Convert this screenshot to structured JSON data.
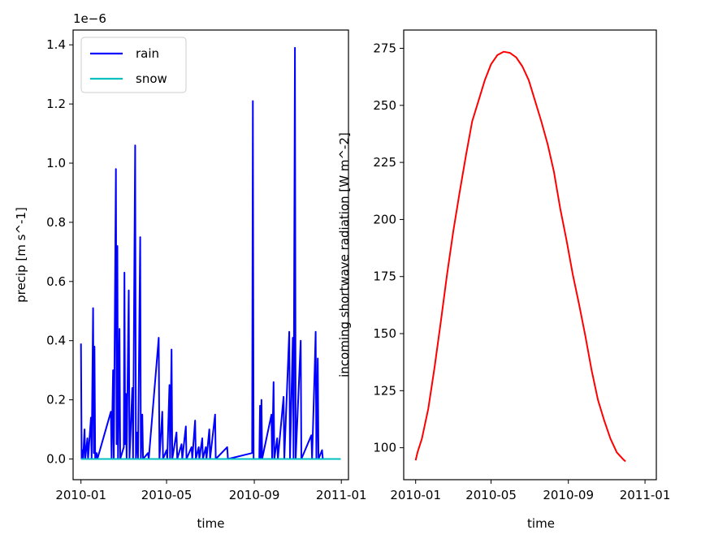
{
  "chart_data": [
    {
      "type": "line",
      "xlabel": "time",
      "ylabel": "precip [m s^-1]",
      "offset_text": "1e−6",
      "x_ticks": [
        "2010-01",
        "2010-05",
        "2010-09",
        "2011-01"
      ],
      "y_ticks": [
        "0.0",
        "0.2",
        "0.4",
        "0.6",
        "0.8",
        "1.0",
        "1.2",
        "1.4"
      ],
      "xlim": [
        "2009-12-21",
        "2011-01-11"
      ],
      "ylim": [
        -0.07,
        1.45
      ],
      "y_scale": 1e-06,
      "legend": {
        "placement": "upper-left"
      },
      "series": [
        {
          "name": "rain",
          "color": "#0000ff",
          "points": [
            [
              "2010-01-01",
              0.39
            ],
            [
              "2010-01-02",
              0.0
            ],
            [
              "2010-01-03",
              0.03
            ],
            [
              "2010-01-04",
              0.0
            ],
            [
              "2010-01-06",
              0.1
            ],
            [
              "2010-01-07",
              0.0
            ],
            [
              "2010-01-10",
              0.07
            ],
            [
              "2010-01-11",
              0.0
            ],
            [
              "2010-01-15",
              0.14
            ],
            [
              "2010-01-16",
              0.0
            ],
            [
              "2010-01-18",
              0.51
            ],
            [
              "2010-01-19",
              0.02
            ],
            [
              "2010-01-20",
              0.38
            ],
            [
              "2010-01-21",
              0.0
            ],
            [
              "2010-01-23",
              0.02
            ],
            [
              "2010-01-24",
              0.0
            ],
            [
              "2010-02-12",
              0.16
            ],
            [
              "2010-02-13",
              0.0
            ],
            [
              "2010-02-15",
              0.3
            ],
            [
              "2010-02-16",
              0.0
            ],
            [
              "2010-02-19",
              0.98
            ],
            [
              "2010-02-20",
              0.05
            ],
            [
              "2010-02-21",
              0.72
            ],
            [
              "2010-02-22",
              0.0
            ],
            [
              "2010-02-24",
              0.44
            ],
            [
              "2010-02-25",
              0.0
            ],
            [
              "2010-03-02",
              0.04
            ],
            [
              "2010-03-03",
              0.63
            ],
            [
              "2010-03-04",
              0.05
            ],
            [
              "2010-03-05",
              0.22
            ],
            [
              "2010-03-06",
              0.0
            ],
            [
              "2010-03-09",
              0.57
            ],
            [
              "2010-03-10",
              0.0
            ],
            [
              "2010-03-14",
              0.24
            ],
            [
              "2010-03-15",
              0.0
            ],
            [
              "2010-03-18",
              1.06
            ],
            [
              "2010-03-19",
              0.0
            ],
            [
              "2010-03-21",
              0.09
            ],
            [
              "2010-03-22",
              0.0
            ],
            [
              "2010-03-25",
              0.75
            ],
            [
              "2010-03-26",
              0.0
            ],
            [
              "2010-03-28",
              0.15
            ],
            [
              "2010-03-29",
              0.0
            ],
            [
              "2010-04-05",
              0.02
            ],
            [
              "2010-04-06",
              0.0
            ],
            [
              "2010-04-20",
              0.41
            ],
            [
              "2010-04-21",
              0.0
            ],
            [
              "2010-04-25",
              0.16
            ],
            [
              "2010-04-26",
              0.0
            ],
            [
              "2010-05-01",
              0.03
            ],
            [
              "2010-05-02",
              0.0
            ],
            [
              "2010-05-05",
              0.25
            ],
            [
              "2010-05-06",
              0.0
            ],
            [
              "2010-05-08",
              0.37
            ],
            [
              "2010-05-09",
              0.0
            ],
            [
              "2010-05-15",
              0.09
            ],
            [
              "2010-05-16",
              0.0
            ],
            [
              "2010-05-22",
              0.05
            ],
            [
              "2010-05-23",
              0.0
            ],
            [
              "2010-05-28",
              0.11
            ],
            [
              "2010-05-29",
              0.0
            ],
            [
              "2010-06-05",
              0.04
            ],
            [
              "2010-06-06",
              0.0
            ],
            [
              "2010-06-10",
              0.13
            ],
            [
              "2010-06-11",
              0.0
            ],
            [
              "2010-06-15",
              0.04
            ],
            [
              "2010-06-16",
              0.0
            ],
            [
              "2010-06-20",
              0.07
            ],
            [
              "2010-06-21",
              0.0
            ],
            [
              "2010-06-25",
              0.04
            ],
            [
              "2010-06-26",
              0.0
            ],
            [
              "2010-06-30",
              0.1
            ],
            [
              "2010-07-01",
              0.0
            ],
            [
              "2010-07-08",
              0.15
            ],
            [
              "2010-07-09",
              0.0
            ],
            [
              "2010-07-25",
              0.04
            ],
            [
              "2010-07-26",
              0.0
            ],
            [
              "2010-08-29",
              0.02
            ],
            [
              "2010-08-30",
              1.21
            ],
            [
              "2010-08-31",
              0.0
            ],
            [
              "2010-09-08",
              0.0
            ],
            [
              "2010-09-09",
              0.18
            ],
            [
              "2010-09-10",
              0.0
            ],
            [
              "2010-09-11",
              0.2
            ],
            [
              "2010-09-12",
              0.0
            ],
            [
              "2010-09-25",
              0.15
            ],
            [
              "2010-09-26",
              0.0
            ],
            [
              "2010-09-28",
              0.26
            ],
            [
              "2010-09-29",
              0.0
            ],
            [
              "2010-10-03",
              0.07
            ],
            [
              "2010-10-04",
              0.0
            ],
            [
              "2010-10-12",
              0.21
            ],
            [
              "2010-10-13",
              0.0
            ],
            [
              "2010-10-20",
              0.43
            ],
            [
              "2010-10-21",
              0.0
            ],
            [
              "2010-10-25",
              0.41
            ],
            [
              "2010-10-26",
              0.0
            ],
            [
              "2010-10-28",
              1.39
            ],
            [
              "2010-10-29",
              0.0
            ],
            [
              "2010-11-05",
              0.4
            ],
            [
              "2010-11-06",
              0.0
            ],
            [
              "2010-11-20",
              0.08
            ],
            [
              "2010-11-21",
              0.0
            ],
            [
              "2010-11-25",
              0.33
            ],
            [
              "2010-11-26",
              0.43
            ],
            [
              "2010-11-27",
              0.0
            ],
            [
              "2010-11-29",
              0.34
            ],
            [
              "2010-11-30",
              0.0
            ],
            [
              "2010-12-05",
              0.03
            ],
            [
              "2010-12-06",
              0.0
            ],
            [
              "2010-12-31",
              0.0
            ]
          ]
        },
        {
          "name": "snow",
          "color": "#00bfbf",
          "points": [
            [
              "2010-01-01",
              0.0
            ],
            [
              "2010-12-31",
              0.0
            ]
          ]
        }
      ]
    },
    {
      "type": "line",
      "xlabel": "time",
      "ylabel": "incoming shortwave radiation [W m^-2]",
      "x_ticks": [
        "2010-01",
        "2010-05",
        "2010-09",
        "2011-01"
      ],
      "y_ticks": [
        "100",
        "125",
        "150",
        "175",
        "200",
        "225",
        "250",
        "275"
      ],
      "xlim": [
        "2009-12-13",
        "2011-01-19"
      ],
      "ylim": [
        86,
        283
      ],
      "series": [
        {
          "color": "#ff0000",
          "points": [
            [
              "2010-01-01",
              94.5
            ],
            [
              "2010-01-04",
              98
            ],
            [
              "2010-01-11",
              104
            ],
            [
              "2010-01-21",
              117
            ],
            [
              "2010-01-31",
              135
            ],
            [
              "2010-02-10",
              155
            ],
            [
              "2010-02-20",
              176
            ],
            [
              "2010-03-02",
              195
            ],
            [
              "2010-03-12",
              212
            ],
            [
              "2010-03-22",
              228
            ],
            [
              "2010-04-01",
              243
            ],
            [
              "2010-04-11",
              252
            ],
            [
              "2010-04-21",
              261
            ],
            [
              "2010-05-01",
              268
            ],
            [
              "2010-05-11",
              272
            ],
            [
              "2010-05-21",
              273.5
            ],
            [
              "2010-05-31",
              273
            ],
            [
              "2010-06-10",
              271
            ],
            [
              "2010-06-20",
              267
            ],
            [
              "2010-06-30",
              261
            ],
            [
              "2010-07-10",
              252
            ],
            [
              "2010-07-20",
              243
            ],
            [
              "2010-07-30",
              233
            ],
            [
              "2010-08-09",
              221
            ],
            [
              "2010-08-19",
              205
            ],
            [
              "2010-08-29",
              191
            ],
            [
              "2010-09-08",
              176
            ],
            [
              "2010-09-18",
              163
            ],
            [
              "2010-09-28",
              149
            ],
            [
              "2010-10-08",
              134
            ],
            [
              "2010-10-18",
              121
            ],
            [
              "2010-10-28",
              112
            ],
            [
              "2010-11-07",
              104
            ],
            [
              "2010-11-17",
              98
            ],
            [
              "2010-11-27",
              95
            ],
            [
              "2010-12-01",
              94
            ]
          ]
        }
      ]
    }
  ]
}
